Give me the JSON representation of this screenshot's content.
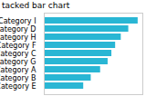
{
  "chart_data": {
    "type": "bar",
    "title": "tacked bar chart",
    "categories": [
      "Category I",
      "Category D",
      "Category H",
      "Category F",
      "Category C",
      "Category G",
      "Category A",
      "Category B",
      "Category E"
    ],
    "values": [
      100,
      90,
      82,
      76,
      72,
      68,
      60,
      50,
      42
    ],
    "color": "#29b6d4",
    "orientation": "horizontal",
    "xlim": [
      0,
      105
    ],
    "tick_labels": "y",
    "grid": false
  }
}
